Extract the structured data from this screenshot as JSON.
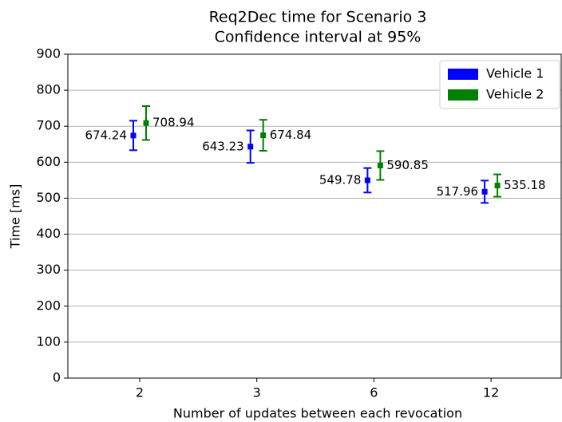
{
  "chart_data": {
    "type": "errorbar",
    "title": "Req2Dec time for Scenario 3",
    "subtitle": "Confidence interval at 95%",
    "x_label": "Number of updates between each revocation",
    "y_label": "Time [ms]",
    "categories": [
      "2",
      "3",
      "6",
      "12"
    ],
    "series": [
      {
        "name": "Vehicle 1",
        "color": "#0000ff",
        "values": [
          674.24,
          643.23,
          549.78,
          517.96
        ],
        "errors": [
          41,
          45,
          34,
          31
        ]
      },
      {
        "name": "Vehicle 2",
        "color": "#008000",
        "values": [
          708.94,
          674.84,
          590.85,
          535.18
        ],
        "errors": [
          47,
          43,
          40,
          31
        ]
      }
    ],
    "ylim": [
      0,
      900
    ],
    "yticks": [
      0,
      100,
      200,
      300,
      400,
      500,
      600,
      700,
      800,
      900
    ],
    "grid": true,
    "legend": "upper right"
  }
}
